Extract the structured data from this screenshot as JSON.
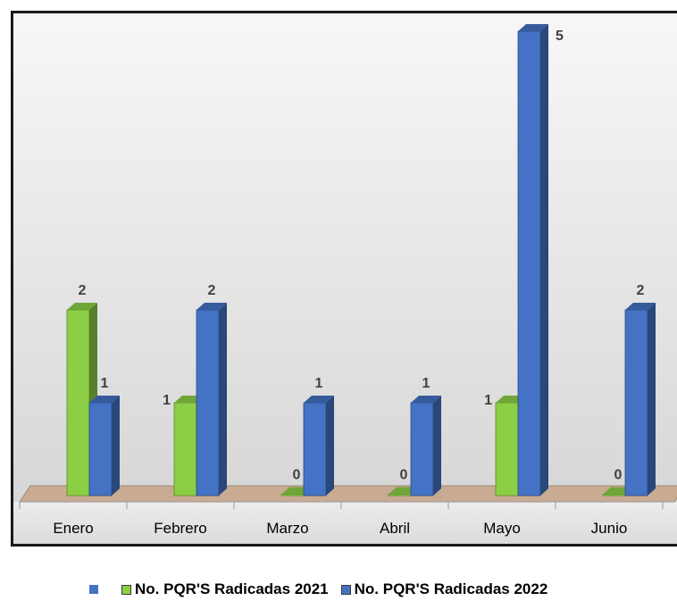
{
  "colors": {
    "series_2021": "#8ccf45",
    "series_2022": "#4472c4",
    "floor": "#c8ab92"
  },
  "chart_data": {
    "type": "bar",
    "categories": [
      "Enero",
      "Febrero",
      "Marzo",
      "Abril",
      "Mayo",
      "Junio"
    ],
    "series": [
      {
        "name": "No. PQR'S Radicadas 2021",
        "values": [
          2,
          1,
          0,
          0,
          1,
          0
        ]
      },
      {
        "name": "No. PQR'S Radicadas 2022",
        "values": [
          1,
          2,
          1,
          1,
          5,
          2
        ]
      }
    ],
    "title": "",
    "xlabel": "",
    "ylabel": "",
    "ylim": [
      0,
      5
    ],
    "grid": false,
    "legend_position": "bottom",
    "style": "3d-column"
  }
}
